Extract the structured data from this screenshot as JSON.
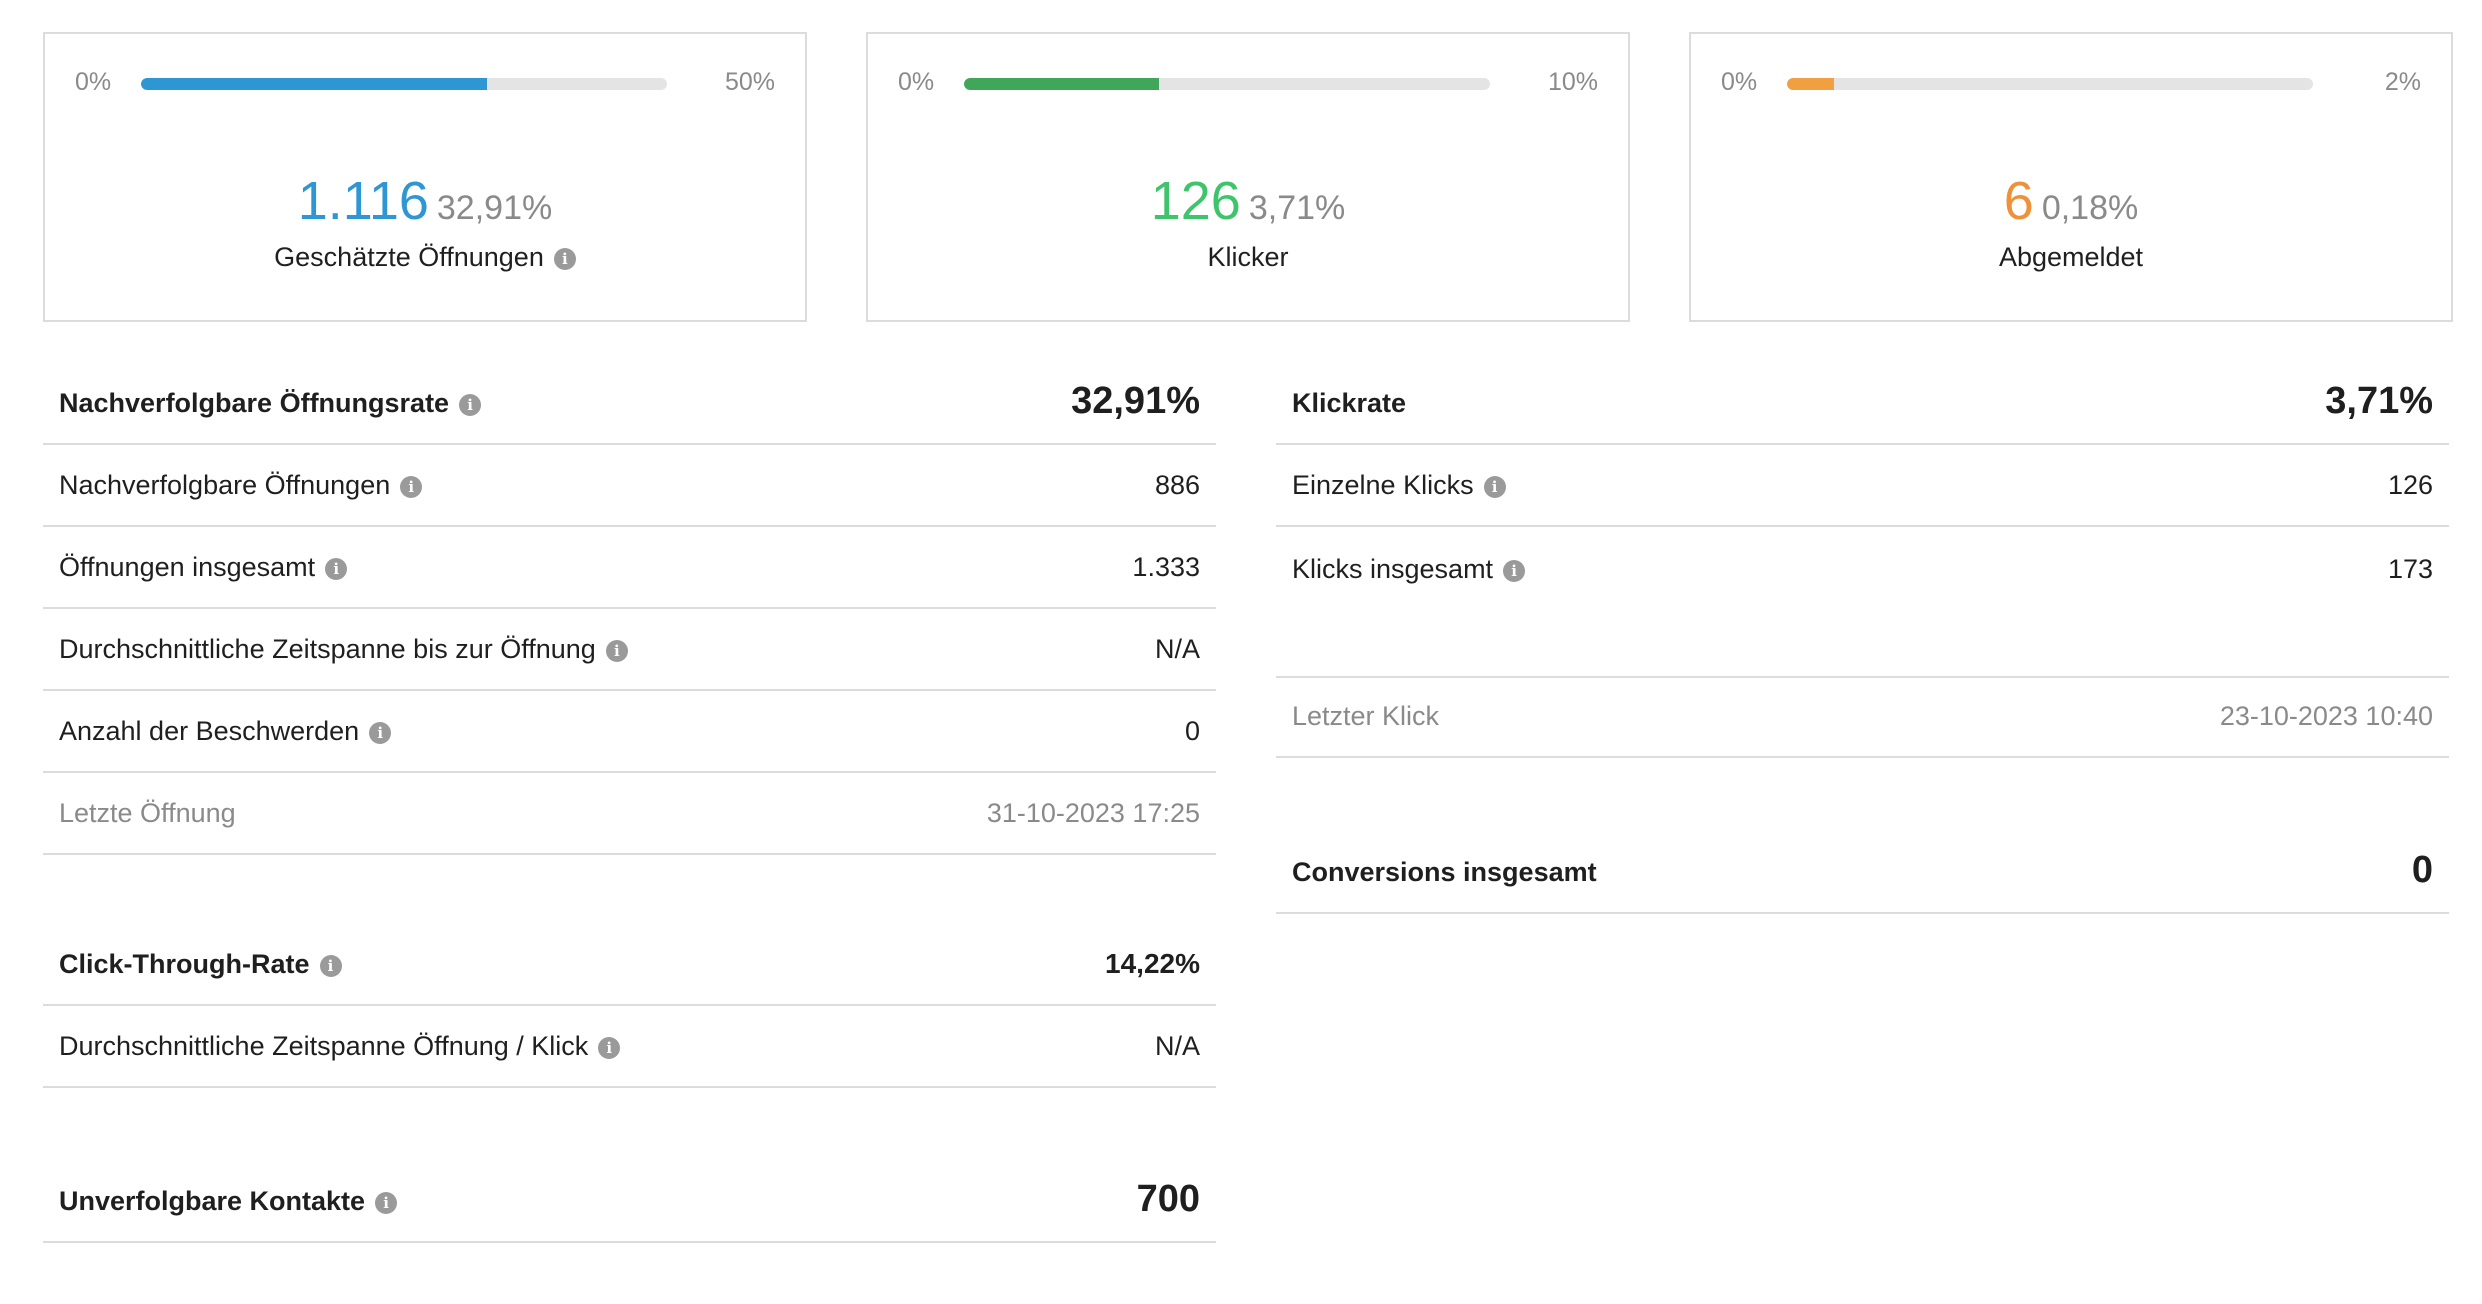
{
  "cards": [
    {
      "min": "0%",
      "max": "50%",
      "progress": 0.6582,
      "color": "#2e96d3",
      "number": "1.116",
      "percent": "32,91%",
      "label": "Geschätzte Öffnungen",
      "info": true
    },
    {
      "min": "0%",
      "max": "10%",
      "progress": 0.371,
      "color": "#3fa65a",
      "number_color": "#3ec46b",
      "number": "126",
      "percent": "3,71%",
      "label": "Klicker",
      "info": false
    },
    {
      "min": "0%",
      "max": "2%",
      "progress": 0.09,
      "color": "#f0a040",
      "number_color": "#f0913a",
      "number": "6",
      "percent": "0,18%",
      "label": "Abgemeldet",
      "info": false
    }
  ],
  "left": {
    "opens_header": {
      "label": "Nachverfolgbare Öffnungsrate",
      "value": "32,91%"
    },
    "opens_rows": [
      {
        "label": "Nachverfolgbare Öffnungen",
        "value": "886"
      },
      {
        "label": "Öffnungen insgesamt",
        "value": "1.333"
      },
      {
        "label": "Durchschnittliche Zeitspanne bis zur Öffnung",
        "value": "N/A"
      },
      {
        "label": "Anzahl der Beschwerden",
        "value": "0"
      }
    ],
    "last_open": {
      "label": "Letzte Öffnung",
      "value": "31-10-2023 17:25"
    },
    "ctr_header": {
      "label": "Click-Through-Rate",
      "value": "14,22%"
    },
    "ctr_rows": [
      {
        "label": "Durchschnittliche Zeitspanne Öffnung / Klick",
        "value": "N/A"
      }
    ],
    "untraceable": {
      "label": "Unverfolgbare Kontakte",
      "value": "700"
    }
  },
  "right": {
    "clicks_header": {
      "label": "Klickrate",
      "value": "3,71%"
    },
    "clicks_rows": [
      {
        "label": "Einzelne Klicks",
        "value": "126"
      },
      {
        "label": "Klicks insgesamt",
        "value": "173"
      }
    ],
    "last_click": {
      "label": "Letzter Klick",
      "value": "23-10-2023 10:40"
    },
    "conversions": {
      "label": "Conversions insgesamt",
      "value": "0"
    }
  },
  "info_glyph": "i"
}
